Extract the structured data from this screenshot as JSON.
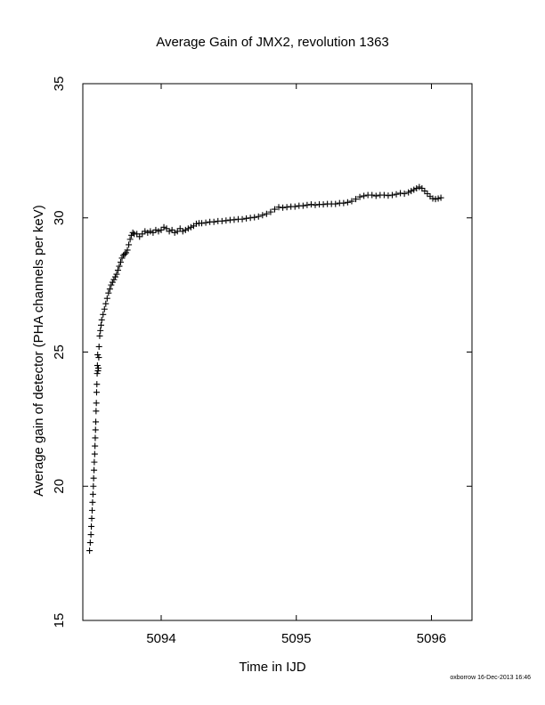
{
  "chart_data": {
    "type": "scatter",
    "title": "Average Gain of JMX2, revolution 1363",
    "xlabel": "Time in IJD",
    "ylabel": "Average gain of detector (PHA channels per keV)",
    "xlim": [
      5093.42,
      5096.3
    ],
    "ylim": [
      15,
      35
    ],
    "xticks": [
      5094,
      5095,
      5096
    ],
    "yticks": [
      15,
      20,
      25,
      30,
      35
    ],
    "marker": "+",
    "marker_color": "#000000",
    "grid": false,
    "series": [
      {
        "name": "",
        "points": [
          [
            5093.47,
            17.6
          ],
          [
            5093.475,
            17.9
          ],
          [
            5093.48,
            18.2
          ],
          [
            5093.483,
            18.5
          ],
          [
            5093.486,
            18.8
          ],
          [
            5093.489,
            19.1
          ],
          [
            5093.492,
            19.4
          ],
          [
            5093.495,
            19.7
          ],
          [
            5093.498,
            20.0
          ],
          [
            5093.5,
            20.3
          ],
          [
            5093.503,
            20.6
          ],
          [
            5093.505,
            20.9
          ],
          [
            5093.508,
            21.2
          ],
          [
            5093.51,
            21.5
          ],
          [
            5093.512,
            21.8
          ],
          [
            5093.514,
            22.1
          ],
          [
            5093.516,
            22.4
          ],
          [
            5093.518,
            22.8
          ],
          [
            5093.52,
            23.1
          ],
          [
            5093.522,
            23.5
          ],
          [
            5093.524,
            23.8
          ],
          [
            5093.526,
            24.2
          ],
          [
            5093.528,
            24.5
          ],
          [
            5093.53,
            24.9
          ],
          [
            5093.532,
            24.3
          ],
          [
            5093.535,
            24.4
          ],
          [
            5093.538,
            24.8
          ],
          [
            5093.54,
            25.2
          ],
          [
            5093.545,
            25.6
          ],
          [
            5093.55,
            25.8
          ],
          [
            5093.555,
            26.0
          ],
          [
            5093.56,
            26.2
          ],
          [
            5093.57,
            26.4
          ],
          [
            5093.58,
            26.6
          ],
          [
            5093.59,
            26.8
          ],
          [
            5093.6,
            27.0
          ],
          [
            5093.61,
            27.2
          ],
          [
            5093.62,
            27.35
          ],
          [
            5093.63,
            27.5
          ],
          [
            5093.64,
            27.6
          ],
          [
            5093.65,
            27.7
          ],
          [
            5093.66,
            27.8
          ],
          [
            5093.67,
            27.9
          ],
          [
            5093.68,
            28.05
          ],
          [
            5093.69,
            28.2
          ],
          [
            5093.7,
            28.35
          ],
          [
            5093.71,
            28.5
          ],
          [
            5093.72,
            28.6
          ],
          [
            5093.73,
            28.65
          ],
          [
            5093.74,
            28.7
          ],
          [
            5093.75,
            28.8
          ],
          [
            5093.76,
            29.0
          ],
          [
            5093.77,
            29.2
          ],
          [
            5093.78,
            29.35
          ],
          [
            5093.79,
            29.45
          ],
          [
            5093.8,
            29.4
          ],
          [
            5093.82,
            29.4
          ],
          [
            5093.84,
            29.3
          ],
          [
            5093.86,
            29.4
          ],
          [
            5093.88,
            29.5
          ],
          [
            5093.9,
            29.45
          ],
          [
            5093.92,
            29.5
          ],
          [
            5093.94,
            29.45
          ],
          [
            5093.96,
            29.55
          ],
          [
            5093.98,
            29.5
          ],
          [
            5094.0,
            29.55
          ],
          [
            5094.02,
            29.65
          ],
          [
            5094.04,
            29.6
          ],
          [
            5094.06,
            29.5
          ],
          [
            5094.08,
            29.55
          ],
          [
            5094.1,
            29.45
          ],
          [
            5094.12,
            29.5
          ],
          [
            5094.14,
            29.6
          ],
          [
            5094.16,
            29.5
          ],
          [
            5094.18,
            29.55
          ],
          [
            5094.2,
            29.6
          ],
          [
            5094.22,
            29.65
          ],
          [
            5094.24,
            29.7
          ],
          [
            5094.26,
            29.78
          ],
          [
            5094.28,
            29.8
          ],
          [
            5094.3,
            29.8
          ],
          [
            5094.33,
            29.82
          ],
          [
            5094.36,
            29.85
          ],
          [
            5094.39,
            29.85
          ],
          [
            5094.42,
            29.88
          ],
          [
            5094.45,
            29.88
          ],
          [
            5094.48,
            29.9
          ],
          [
            5094.51,
            29.92
          ],
          [
            5094.54,
            29.93
          ],
          [
            5094.57,
            29.95
          ],
          [
            5094.6,
            29.95
          ],
          [
            5094.63,
            29.98
          ],
          [
            5094.66,
            30.0
          ],
          [
            5094.69,
            30.02
          ],
          [
            5094.72,
            30.05
          ],
          [
            5094.75,
            30.1
          ],
          [
            5094.78,
            30.15
          ],
          [
            5094.81,
            30.22
          ],
          [
            5094.84,
            30.32
          ],
          [
            5094.87,
            30.4
          ],
          [
            5094.9,
            30.38
          ],
          [
            5094.93,
            30.4
          ],
          [
            5094.96,
            30.42
          ],
          [
            5094.99,
            30.42
          ],
          [
            5095.02,
            30.45
          ],
          [
            5095.05,
            30.45
          ],
          [
            5095.08,
            30.48
          ],
          [
            5095.11,
            30.5
          ],
          [
            5095.14,
            30.48
          ],
          [
            5095.17,
            30.5
          ],
          [
            5095.2,
            30.5
          ],
          [
            5095.23,
            30.52
          ],
          [
            5095.26,
            30.52
          ],
          [
            5095.29,
            30.52
          ],
          [
            5095.32,
            30.55
          ],
          [
            5095.35,
            30.55
          ],
          [
            5095.38,
            30.58
          ],
          [
            5095.41,
            30.62
          ],
          [
            5095.44,
            30.7
          ],
          [
            5095.47,
            30.78
          ],
          [
            5095.5,
            30.82
          ],
          [
            5095.53,
            30.85
          ],
          [
            5095.56,
            30.85
          ],
          [
            5095.59,
            30.82
          ],
          [
            5095.62,
            30.85
          ],
          [
            5095.65,
            30.85
          ],
          [
            5095.68,
            30.83
          ],
          [
            5095.71,
            30.85
          ],
          [
            5095.74,
            30.88
          ],
          [
            5095.77,
            30.92
          ],
          [
            5095.8,
            30.9
          ],
          [
            5095.83,
            30.95
          ],
          [
            5095.85,
            31.0
          ],
          [
            5095.87,
            31.05
          ],
          [
            5095.89,
            31.1
          ],
          [
            5095.91,
            31.15
          ],
          [
            5095.93,
            31.1
          ],
          [
            5095.95,
            31.0
          ],
          [
            5095.97,
            30.9
          ],
          [
            5095.99,
            30.8
          ],
          [
            5096.01,
            30.72
          ],
          [
            5096.03,
            30.7
          ],
          [
            5096.05,
            30.72
          ],
          [
            5096.07,
            30.75
          ]
        ]
      }
    ]
  },
  "footer_text": "oxborrow 16-Dec-2013 16:46"
}
